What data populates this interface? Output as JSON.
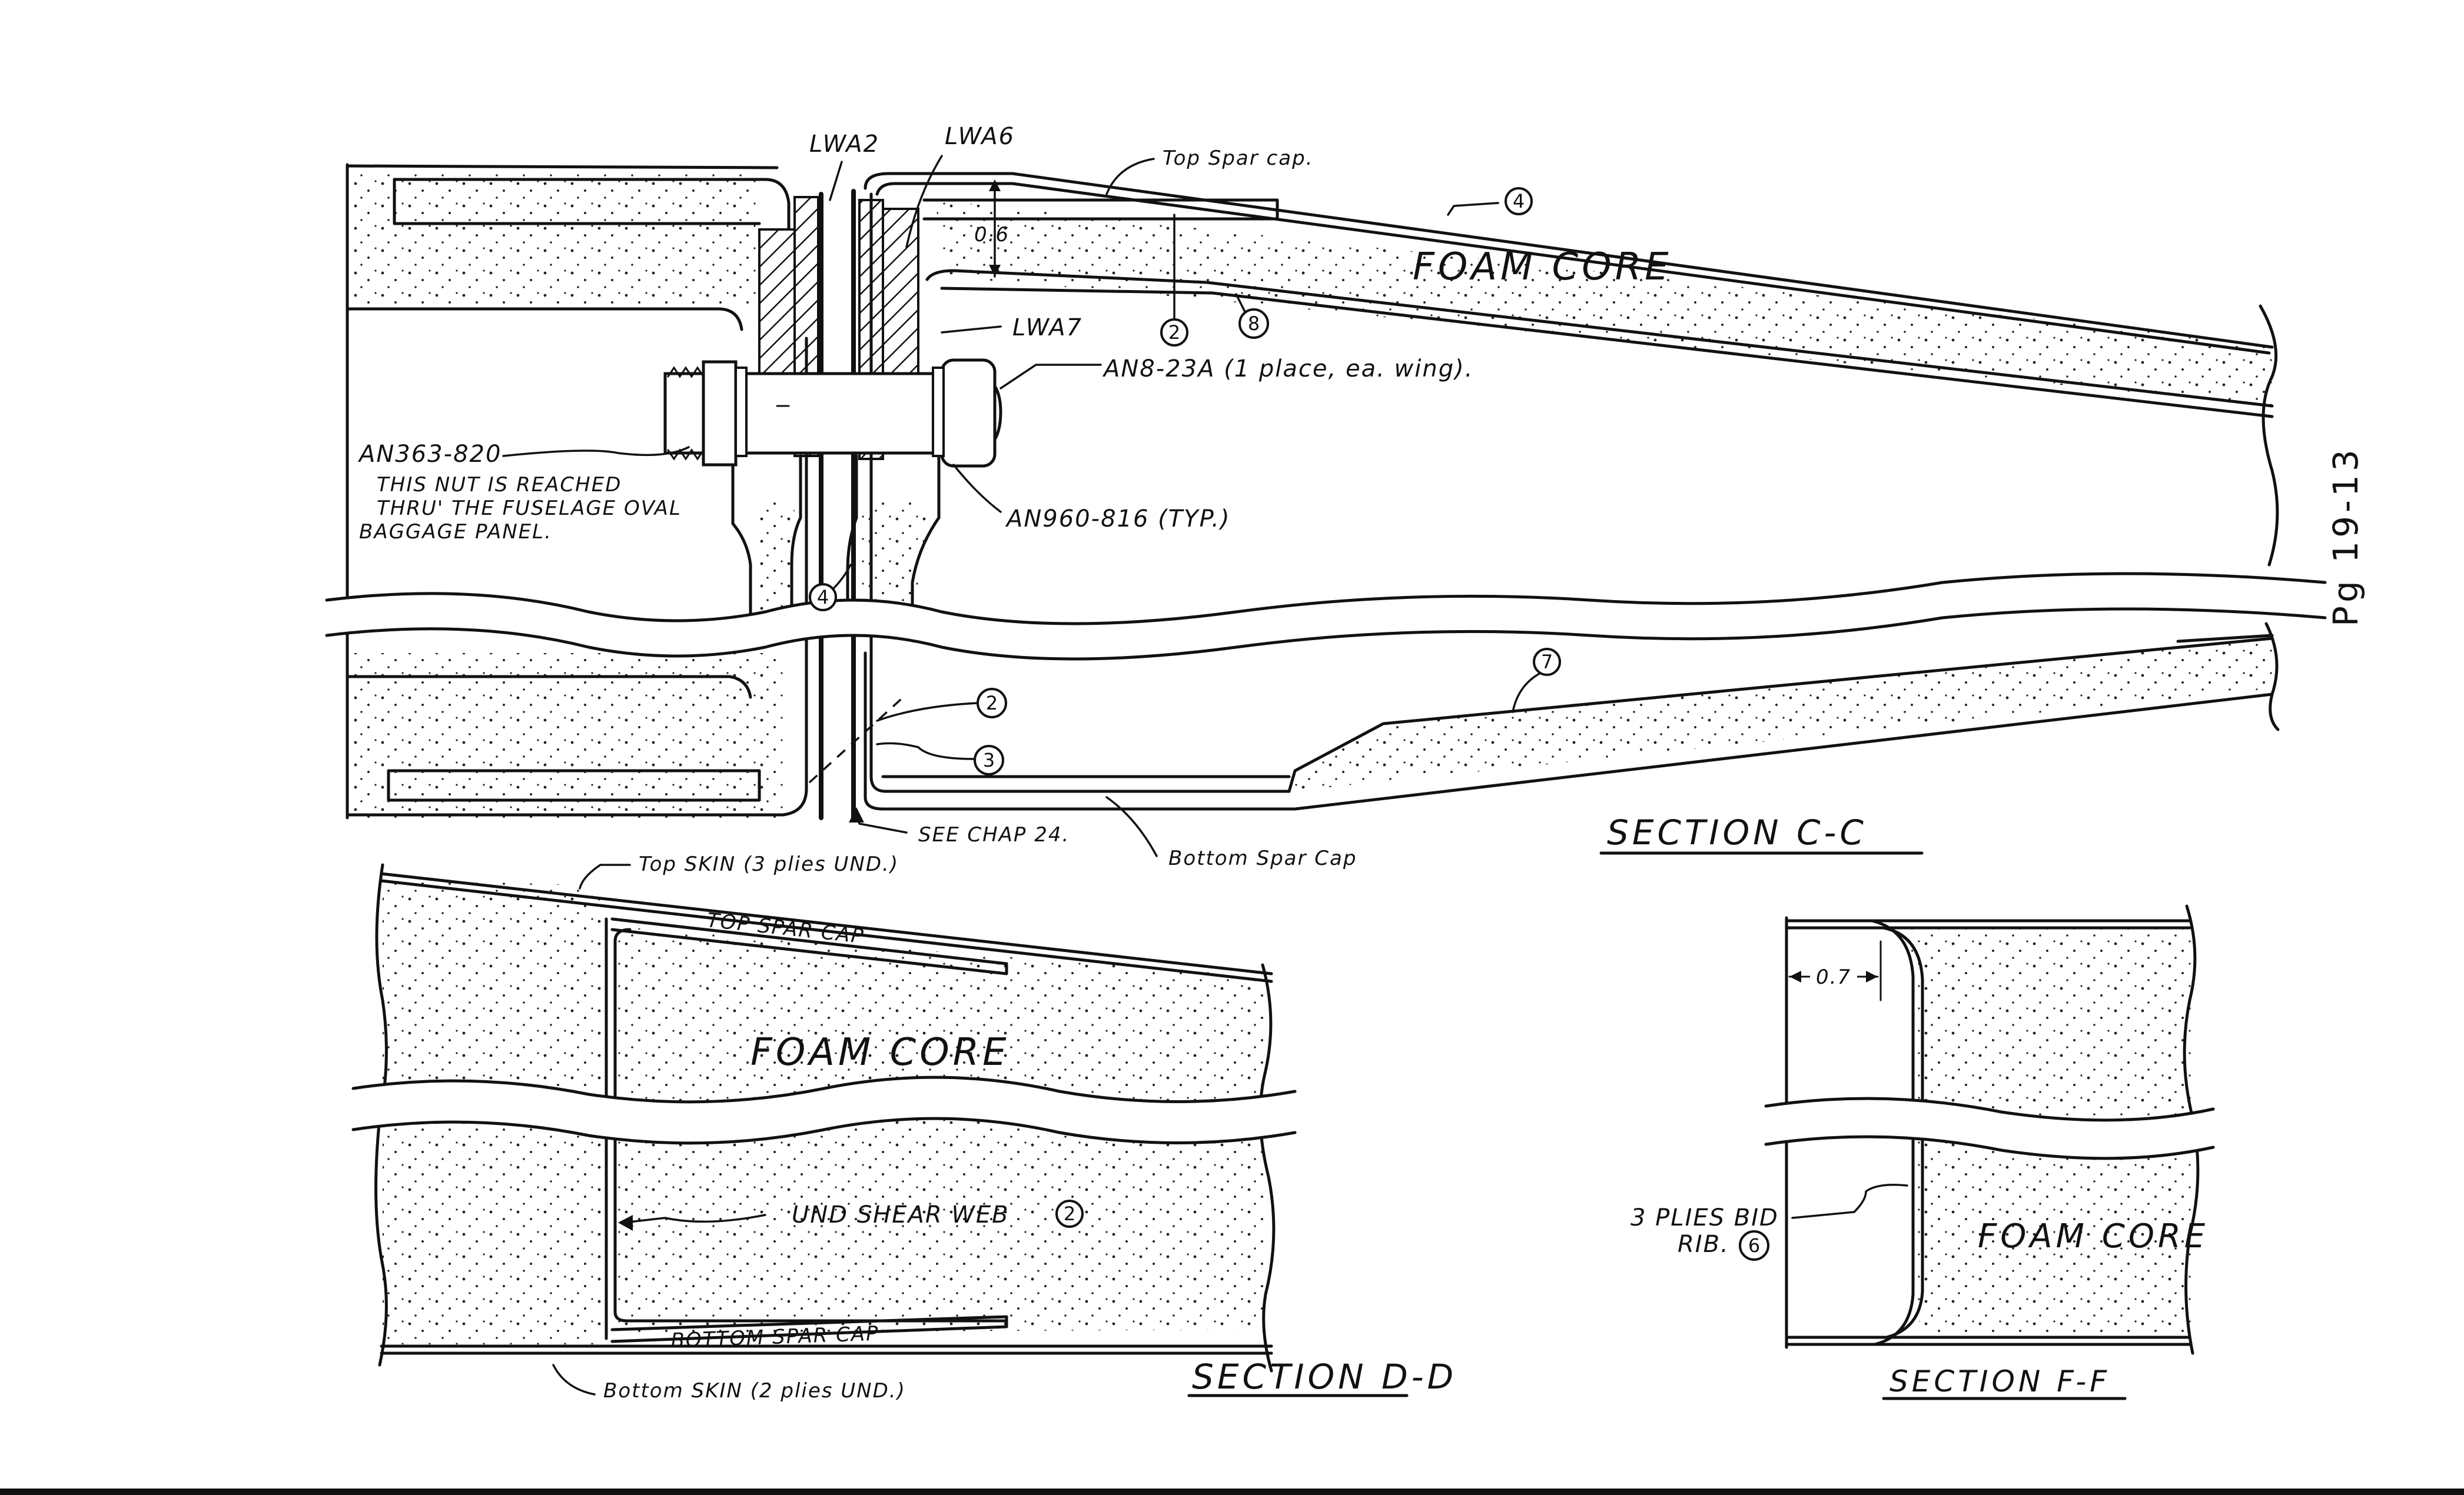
{
  "page": {
    "number": "Pg 19-13"
  },
  "section_cc": {
    "title": "SECTION C-C",
    "labels": {
      "lwa2": "LWA2",
      "lwa6": "LWA6",
      "lwa7": "LWA7",
      "top_spar_cap": "Top Spar cap.",
      "dim_06": "0.6",
      "foam_core": "FOAM CORE",
      "bolt": "AN8-23A (1 place, ea. wing).",
      "nut": "AN363-820",
      "nut_note_1": "THIS NUT IS REACHED",
      "nut_note_2": "THRU' THE FUSELAGE OVAL",
      "nut_note_3": "BAGGAGE PANEL.",
      "washer": "AN960-816 (TYP.)",
      "see_chap": "SEE CHAP 24.",
      "bottom_spar_cap": "Bottom Spar Cap"
    },
    "callouts": [
      "4",
      "2",
      "8",
      "4",
      "7",
      "2",
      "3"
    ]
  },
  "section_dd": {
    "title": "SECTION D-D",
    "labels": {
      "top_skin": "Top SKIN (3 plies UND.)",
      "top_spar_cap": "TOP SPAR CAP",
      "foam_core": "FOAM CORE",
      "shear_web": "UND SHEAR WEB",
      "shear_web_ref": "2",
      "bottom_spar_cap": "BOTTOM SPAR CAP",
      "bottom_skin": "Bottom SKIN (2 plies UND.)"
    }
  },
  "section_ff": {
    "title": "SECTION F-F",
    "labels": {
      "dim_07": "0.7",
      "plies_1": "3 PLIES BID",
      "plies_2": "RIB.",
      "rib_ref": "6",
      "foam_core": "FOAM CORE"
    }
  }
}
